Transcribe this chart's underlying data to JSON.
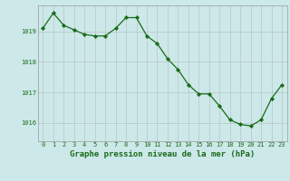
{
  "hours": [
    0,
    1,
    2,
    3,
    4,
    5,
    6,
    7,
    8,
    9,
    10,
    11,
    12,
    13,
    14,
    15,
    16,
    17,
    18,
    19,
    20,
    21,
    22,
    23
  ],
  "pressure": [
    1019.1,
    1019.6,
    1019.2,
    1019.05,
    1018.9,
    1018.85,
    1018.85,
    1019.1,
    1019.45,
    1019.45,
    1018.85,
    1018.6,
    1018.1,
    1017.75,
    1017.25,
    1016.95,
    1016.95,
    1016.55,
    1016.1,
    1015.95,
    1015.9,
    1016.1,
    1016.8,
    1017.25
  ],
  "line_color": "#1a6b1a",
  "marker_color": "#1a6b1a",
  "bg_color": "#cce8e8",
  "grid_color": "#b0b0b0",
  "text_color": "#1a6b1a",
  "xlabel_label": "Graphe pression niveau de la mer (hPa)",
  "ylim_min": 1015.4,
  "ylim_max": 1019.85,
  "yticks": [
    1016,
    1017,
    1018,
    1019
  ],
  "xticks": [
    0,
    1,
    2,
    3,
    4,
    5,
    6,
    7,
    8,
    9,
    10,
    11,
    12,
    13,
    14,
    15,
    16,
    17,
    18,
    19,
    20,
    21,
    22,
    23
  ],
  "tick_fontsize": 5.0,
  "label_fontsize": 6.5,
  "marker_size": 2.2,
  "line_width": 0.9
}
